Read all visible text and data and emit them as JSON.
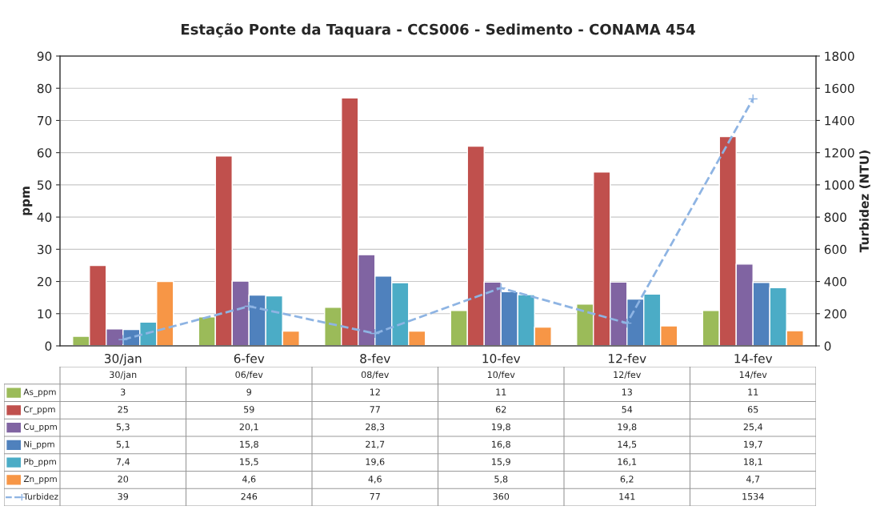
{
  "chart_data": {
    "type": "bar",
    "title": "Estação Ponte da Taquara - CCS006 - Sedimento - CONAMA 454",
    "categories": [
      "30/jan",
      "6-fev",
      "8-fev",
      "10-fev",
      "12-fev",
      "14-fev"
    ],
    "ylabel": "ppm",
    "y2label": "Turbidez (NTU)",
    "ylim": [
      0,
      90
    ],
    "yticks": [
      0,
      10,
      20,
      30,
      40,
      50,
      60,
      70,
      80,
      90
    ],
    "y2lim": [
      0,
      1800
    ],
    "y2ticks": [
      0,
      200,
      400,
      600,
      800,
      1000,
      1200,
      1400,
      1600,
      1800
    ],
    "grid": "y",
    "legend": "bottom",
    "annotations": [
      "30/jan",
      "06/fev",
      "08/fev",
      "10/fev",
      "12/fev",
      "14/fev"
    ],
    "series": [
      {
        "name": "As_ppm",
        "color": "#9bbb59",
        "values": [
          3,
          9,
          12,
          11,
          13,
          11
        ],
        "value_labels": [
          "3",
          "9",
          "12",
          "11",
          "13",
          "11"
        ]
      },
      {
        "name": "Cr_ppm",
        "color": "#c0504d",
        "values": [
          25,
          59,
          77,
          62,
          54,
          65
        ],
        "value_labels": [
          "25",
          "59",
          "77",
          "62",
          "54",
          "65"
        ]
      },
      {
        "name": "Cu_ppm",
        "color": "#8064a2",
        "values": [
          5.3,
          20.1,
          28.3,
          19.8,
          19.8,
          25.4
        ],
        "value_labels": [
          "5,3",
          "20,1",
          "28,3",
          "19,8",
          "19,8",
          "25,4"
        ]
      },
      {
        "name": "Ni_ppm",
        "color": "#4f81bd",
        "values": [
          5.1,
          15.8,
          21.7,
          16.8,
          14.5,
          19.7
        ],
        "value_labels": [
          "5,1",
          "15,8",
          "21,7",
          "16,8",
          "14,5",
          "19,7"
        ]
      },
      {
        "name": "Pb_ppm",
        "color": "#4bacc6",
        "values": [
          7.4,
          15.5,
          19.6,
          15.9,
          16.1,
          18.1
        ],
        "value_labels": [
          "7,4",
          "15,5",
          "19,6",
          "15,9",
          "16,1",
          "18,1"
        ]
      },
      {
        "name": "Zn_ppm",
        "color": "#f79646",
        "values": [
          20,
          4.6,
          4.6,
          5.8,
          6.2,
          4.7
        ],
        "value_labels": [
          "20",
          "4,6",
          "4,6",
          "5,8",
          "6,2",
          "4,7"
        ]
      },
      {
        "name": "Turbidez",
        "type": "line",
        "axis": "y2",
        "color": "#8eb4e3",
        "line_style": "dashed",
        "marker": "cross",
        "values": [
          39,
          246,
          77,
          360,
          141,
          1534
        ],
        "value_labels": [
          "39",
          "246",
          "77",
          "360",
          "141",
          "1534"
        ]
      }
    ]
  }
}
